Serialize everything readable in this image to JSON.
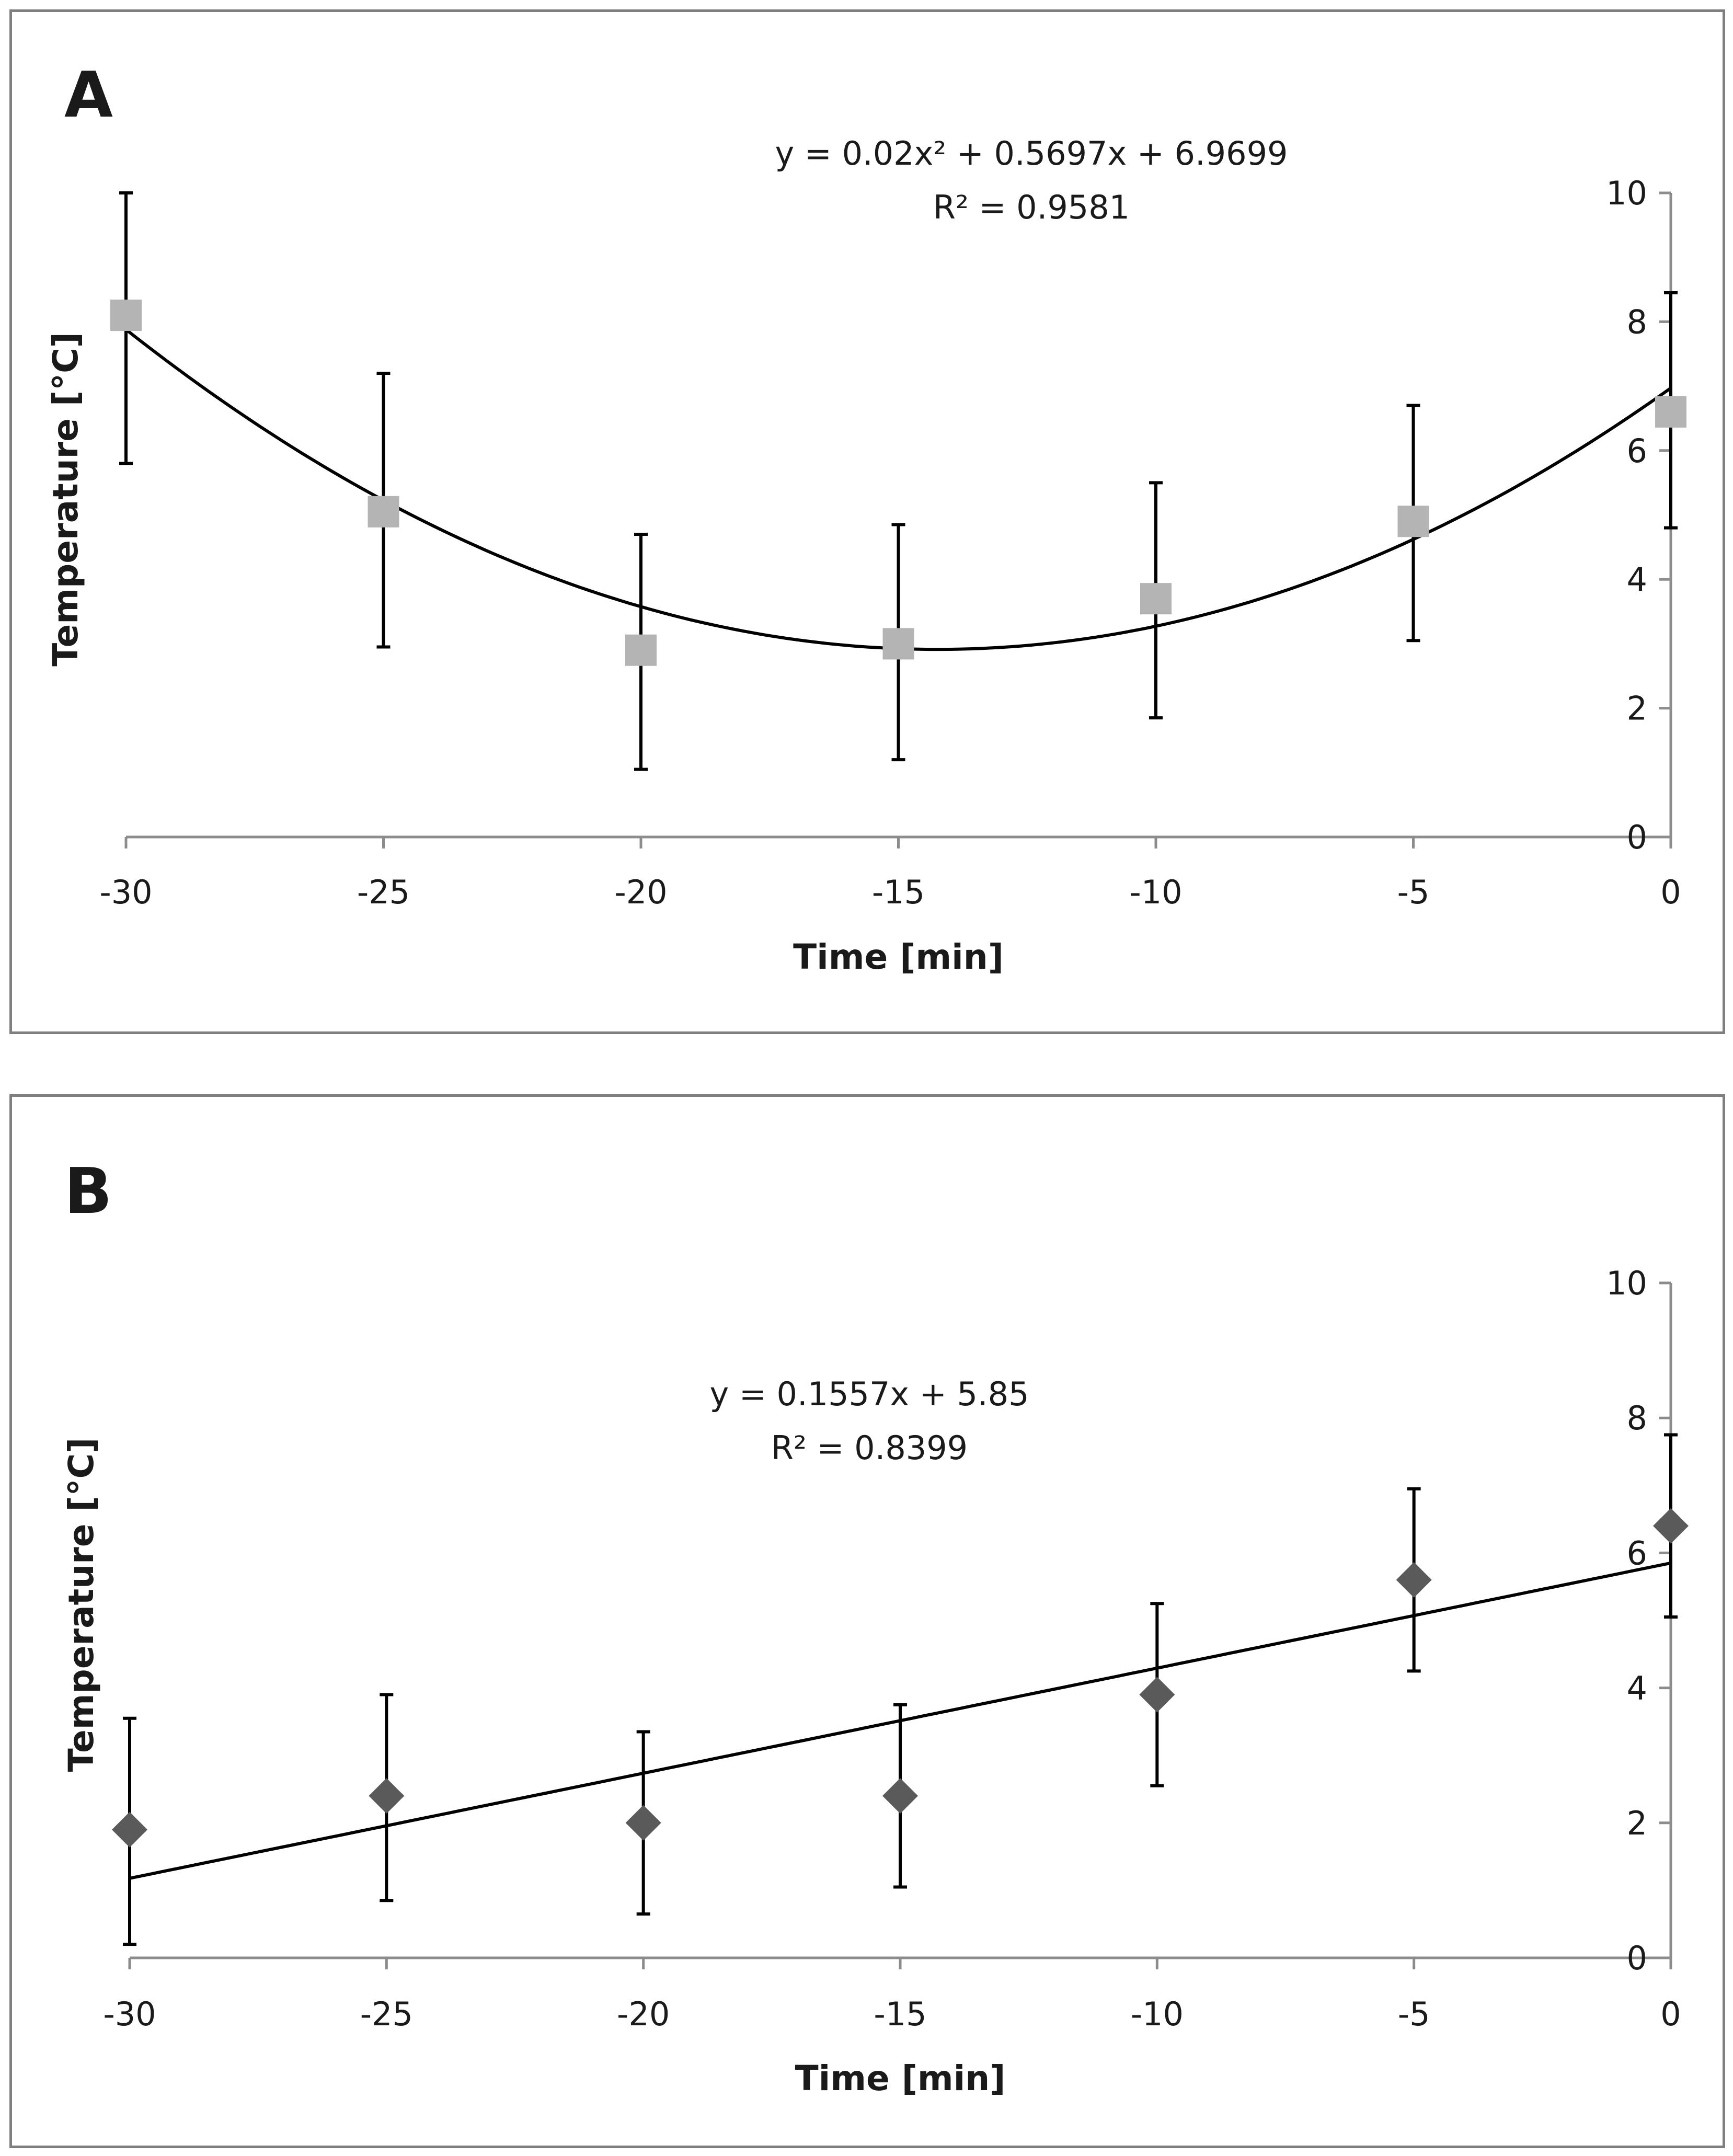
{
  "chart_data": [
    {
      "type": "scatter",
      "panel_label": "A",
      "xlabel": "Time [min]",
      "ylabel": "Temperature [°C]",
      "xlim": [
        -30,
        0
      ],
      "ylim": [
        0,
        10
      ],
      "xticks": [
        -30,
        -25,
        -20,
        -15,
        -10,
        -5,
        0
      ],
      "yticks": [
        0,
        2,
        4,
        6,
        8,
        10
      ],
      "marker": "square",
      "marker_color": "#b4b4b4",
      "series": [
        {
          "name": "Temperature",
          "x": [
            -30,
            -25,
            -20,
            -15,
            -10,
            -5,
            0
          ],
          "y": [
            8.1,
            5.05,
            2.9,
            3.0,
            3.7,
            4.9,
            6.6
          ],
          "err_upper": [
            10.0,
            7.2,
            4.7,
            4.85,
            5.5,
            6.7,
            8.45
          ],
          "err_lower": [
            5.8,
            2.95,
            1.05,
            1.2,
            1.85,
            3.05,
            4.8
          ]
        }
      ],
      "trendline": {
        "kind": "poly2",
        "a": 0.02,
        "b": 0.5697,
        "c": 6.9699
      },
      "equation": "y = 0.02x² + 0.5697x + 6.9699",
      "r_squared": "R² = 0.9581"
    },
    {
      "type": "scatter",
      "panel_label": "B",
      "xlabel": "Time [min]",
      "ylabel": "Temperature [°C]",
      "xlim": [
        -30,
        0
      ],
      "ylim": [
        0,
        10
      ],
      "xticks": [
        -30,
        -25,
        -20,
        -15,
        -10,
        -5,
        0
      ],
      "yticks": [
        0,
        2,
        4,
        6,
        8,
        10
      ],
      "marker": "diamond",
      "marker_color": "#5a5a5a",
      "series": [
        {
          "name": "Temperature",
          "x": [
            -30,
            -25,
            -20,
            -15,
            -10,
            -5,
            0
          ],
          "y": [
            1.9,
            2.4,
            2.0,
            2.4,
            3.9,
            5.6,
            6.4
          ],
          "err_upper": [
            3.55,
            3.9,
            3.35,
            3.75,
            5.25,
            6.95,
            7.75
          ],
          "err_lower": [
            0.2,
            0.85,
            0.65,
            1.05,
            2.55,
            4.25,
            5.05
          ]
        }
      ],
      "trendline": {
        "kind": "linear",
        "m": 0.1557,
        "c": 5.85
      },
      "equation": "y = 0.1557x + 5.85",
      "r_squared": "R² = 0.8399"
    }
  ]
}
